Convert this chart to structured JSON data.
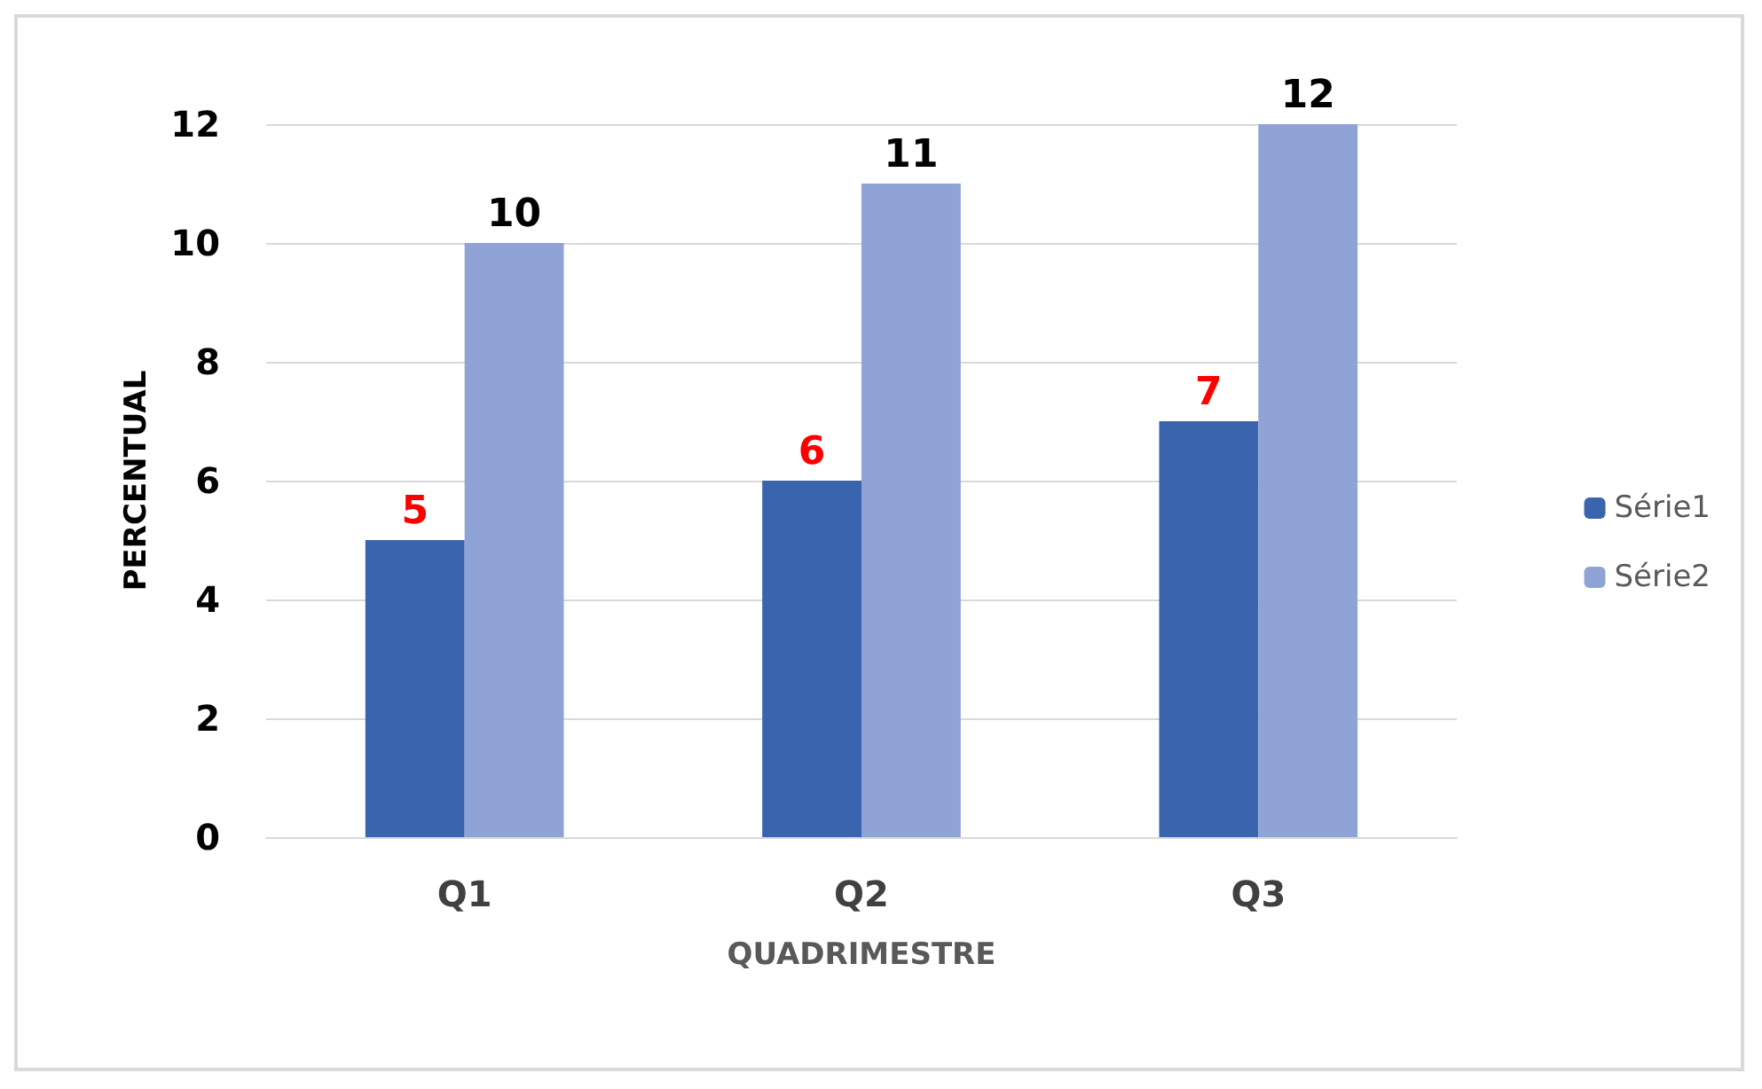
{
  "chart_data": {
    "type": "bar",
    "xlabel": "QUADRIMESTRE",
    "ylabel": "PERCENTUAL",
    "categories": [
      "Q1",
      "Q2",
      "Q3"
    ],
    "series": [
      {
        "name": "Série1",
        "color": "#3a64ad",
        "values": [
          5,
          6,
          7
        ]
      },
      {
        "name": "Série2",
        "color": "#8fa3d6",
        "values": [
          10,
          11,
          12
        ]
      }
    ],
    "ylim": [
      0,
      12
    ],
    "yticks": [
      0,
      2,
      4,
      6,
      8,
      10,
      12
    ],
    "grid": "y",
    "legend": "right",
    "data_labels": true
  }
}
